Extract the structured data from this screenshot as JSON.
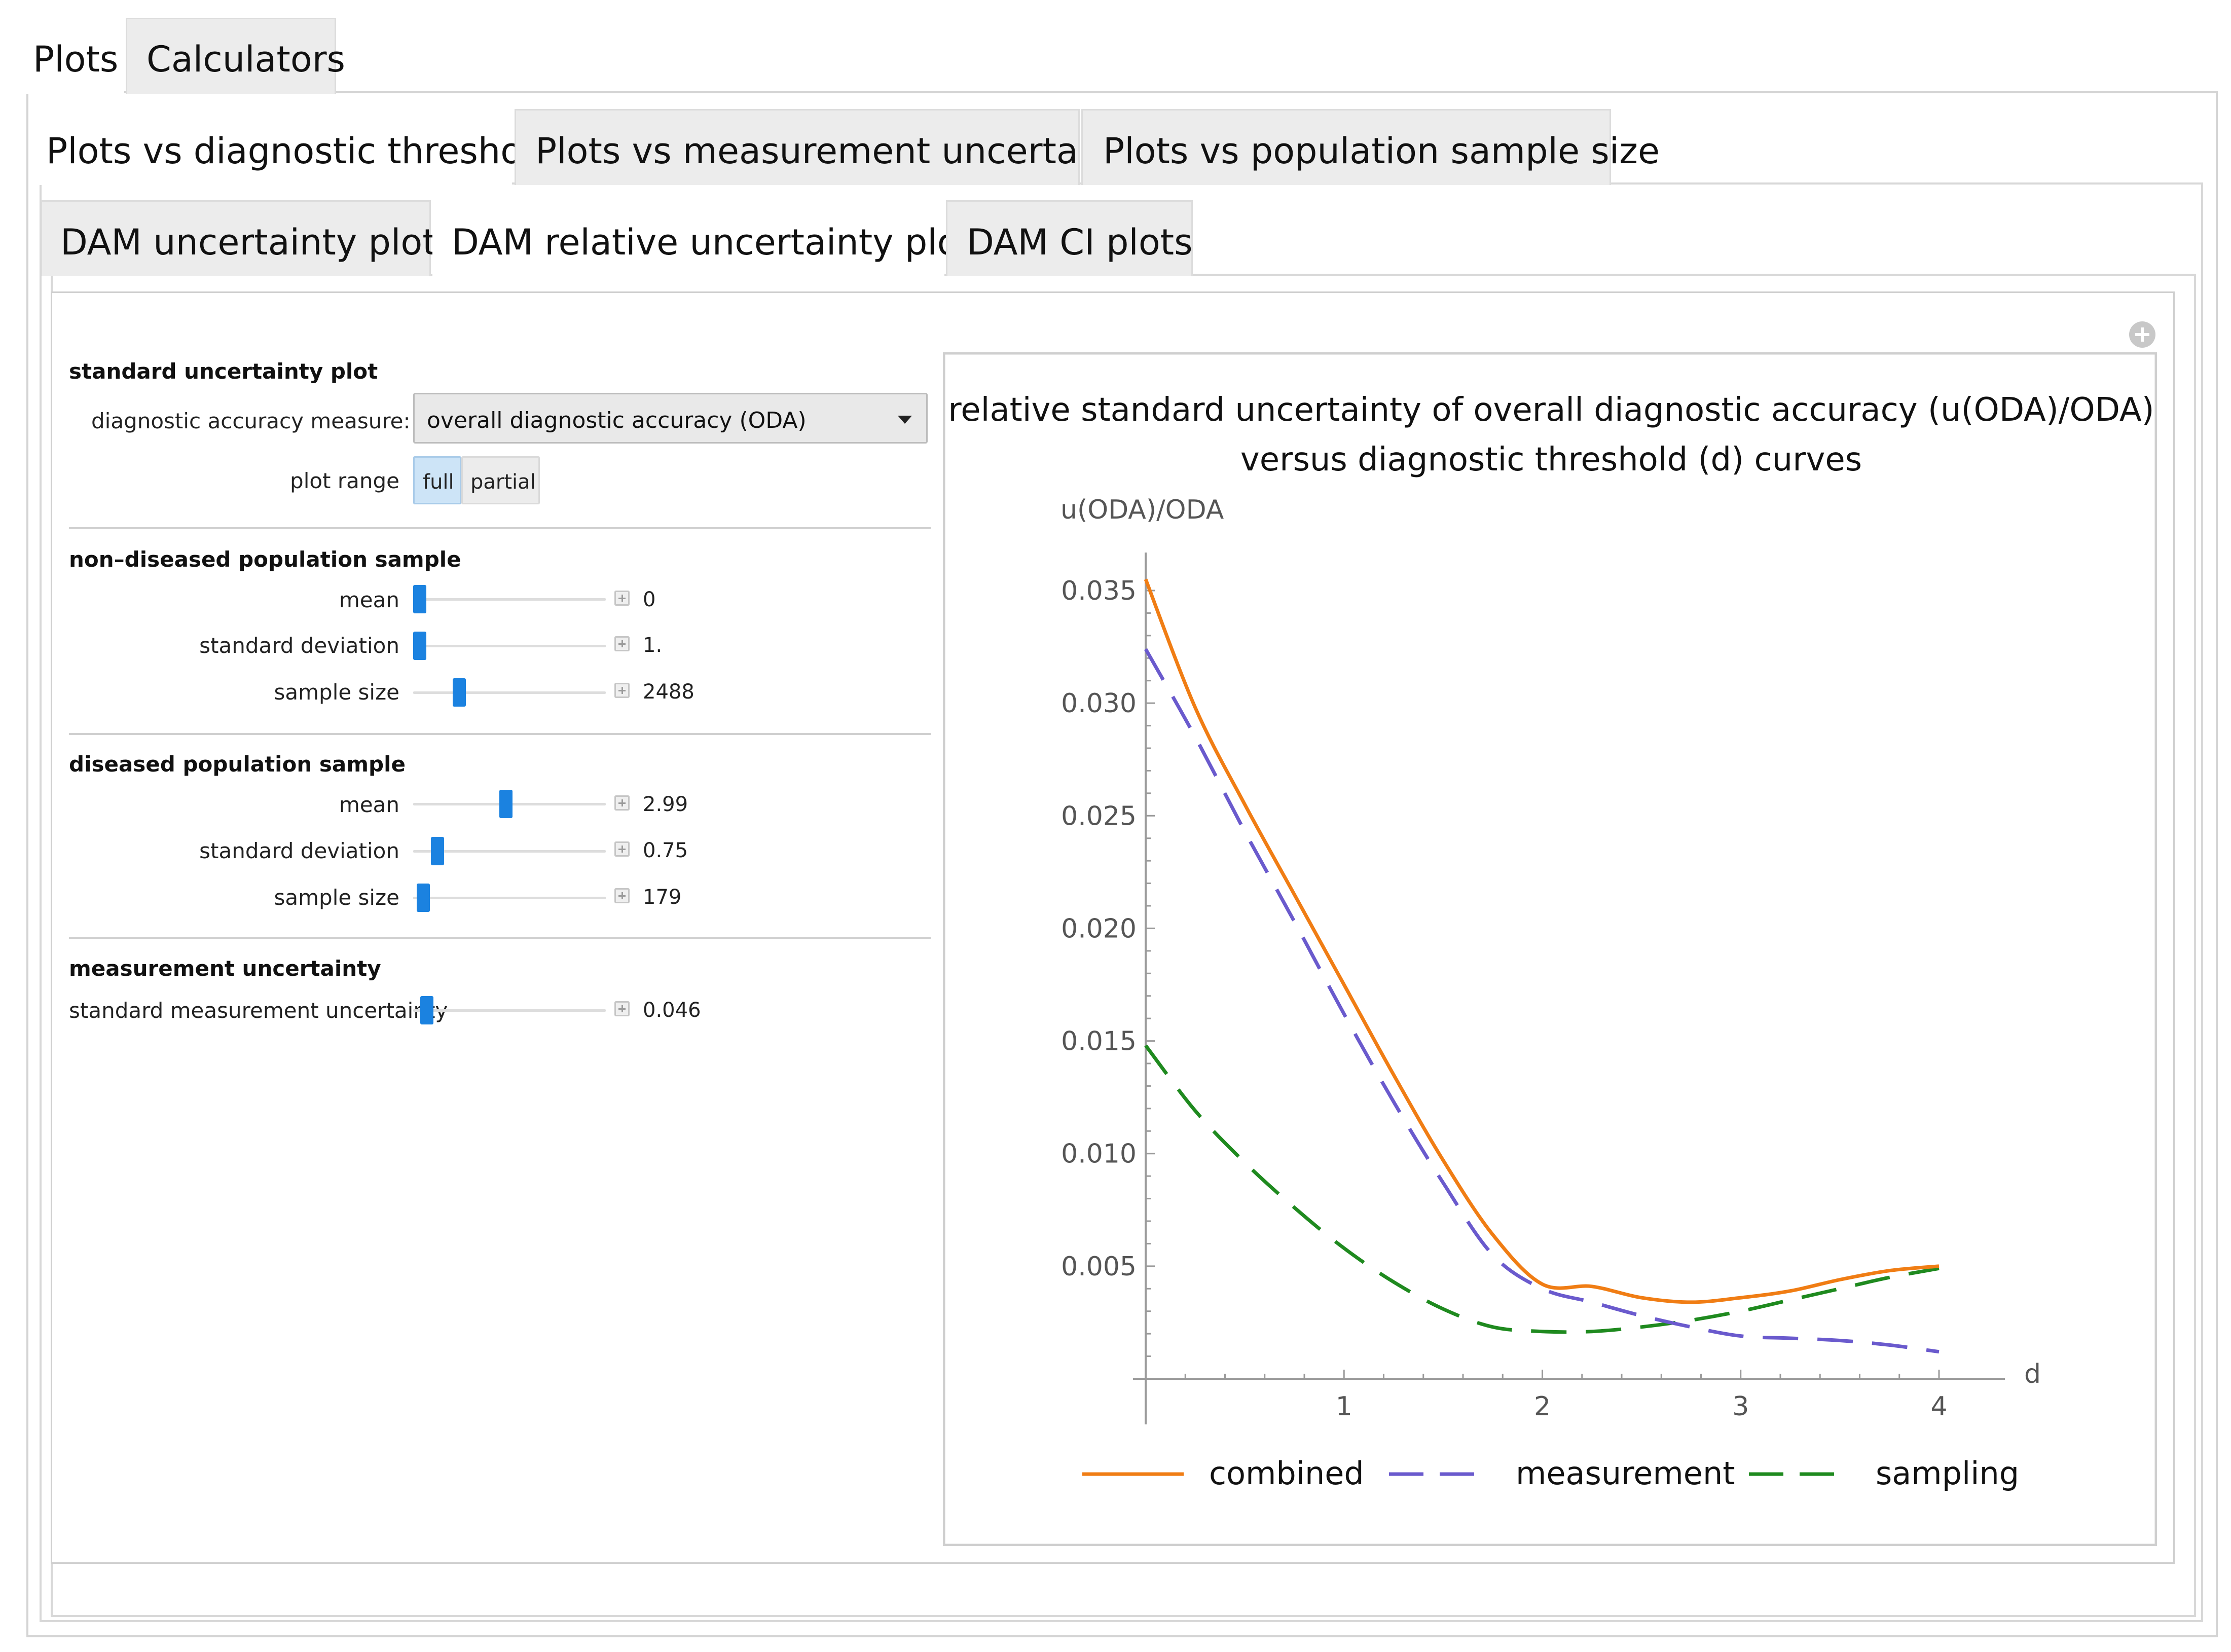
{
  "tabs_level1": [
    "Plots",
    "Calculators"
  ],
  "tabs_level2": [
    "Plots vs diagnostic threshold",
    "Plots vs measurement uncertainty",
    "Plots vs population sample size"
  ],
  "tabs_level3": [
    "DAM uncertainty plots",
    "DAM relative uncertainty plots",
    "DAM CI plots"
  ],
  "controls": {
    "plot_section_title": "standard uncertainty plot",
    "measure_label": "diagnostic accuracy measure:",
    "measure_value": "overall diagnostic accuracy (ODA)",
    "range_label": "plot range",
    "range_options": [
      "full",
      "partial"
    ],
    "range_selected": "full",
    "nondiseased": {
      "title": "non–diseased population sample",
      "mean_label": "mean",
      "mean_value": "0",
      "mean_fraction": 0.0,
      "sd_label": "standard deviation",
      "sd_value": "1.",
      "sd_fraction": 0.0,
      "n_label": "sample size",
      "n_value": "2488",
      "n_fraction": 0.22
    },
    "diseased": {
      "title": "diseased population sample",
      "mean_label": "mean",
      "mean_value": "2.99",
      "mean_fraction": 0.48,
      "sd_label": "standard deviation",
      "sd_value": "0.75",
      "sd_fraction": 0.1,
      "n_label": "sample size",
      "n_value": "179",
      "n_fraction": 0.02
    },
    "measurement": {
      "title": "measurement uncertainty",
      "smu_label": "standard measurement uncertainty",
      "smu_value": "0.046",
      "smu_fraction": 0.04
    }
  },
  "chart_data": {
    "type": "line",
    "title_line1": "relative standard uncertainty of overall diagnostic accuracy (u(ODA)/ODA)",
    "title_line2": "versus diagnostic threshold (d) curves",
    "xlabel": "d",
    "ylabel": "u(ODA)/ODA",
    "xlim": [
      0,
      4
    ],
    "ylim": [
      0,
      0.035
    ],
    "xticks": [
      "1",
      "2",
      "3",
      "4"
    ],
    "yticks": [
      "0.035",
      "0.030",
      "0.025",
      "0.020",
      "0.015",
      "0.010",
      "0.005"
    ],
    "legend_position": "bottom",
    "x": [
      0,
      0.25,
      0.5,
      0.75,
      1.0,
      1.25,
      1.5,
      1.75,
      2.0,
      2.25,
      2.5,
      2.75,
      3.0,
      3.25,
      3.5,
      3.75,
      4.0
    ],
    "series": [
      {
        "name": "combined",
        "color": "#f07d14",
        "dash": "solid",
        "values": [
          0.0355,
          0.0298,
          0.0255,
          0.0215,
          0.0175,
          0.0135,
          0.0097,
          0.0064,
          0.0042,
          0.0041,
          0.0036,
          0.0034,
          0.0036,
          0.0039,
          0.0044,
          0.0048,
          0.005
        ]
      },
      {
        "name": "measurement",
        "color": "#6a5acd",
        "dash": "long",
        "values": [
          0.0324,
          0.0285,
          0.0243,
          0.0203,
          0.0162,
          0.0123,
          0.0087,
          0.0055,
          0.004,
          0.0034,
          0.0028,
          0.0023,
          0.0019,
          0.0018,
          0.0017,
          0.0015,
          0.0012
        ]
      },
      {
        "name": "sampling",
        "color": "#1f8a1f",
        "dash": "long",
        "values": [
          0.0148,
          0.0119,
          0.0096,
          0.0076,
          0.0058,
          0.0043,
          0.0031,
          0.0023,
          0.0021,
          0.0021,
          0.0023,
          0.0026,
          0.003,
          0.0035,
          0.004,
          0.0045,
          0.0049
        ]
      }
    ]
  }
}
